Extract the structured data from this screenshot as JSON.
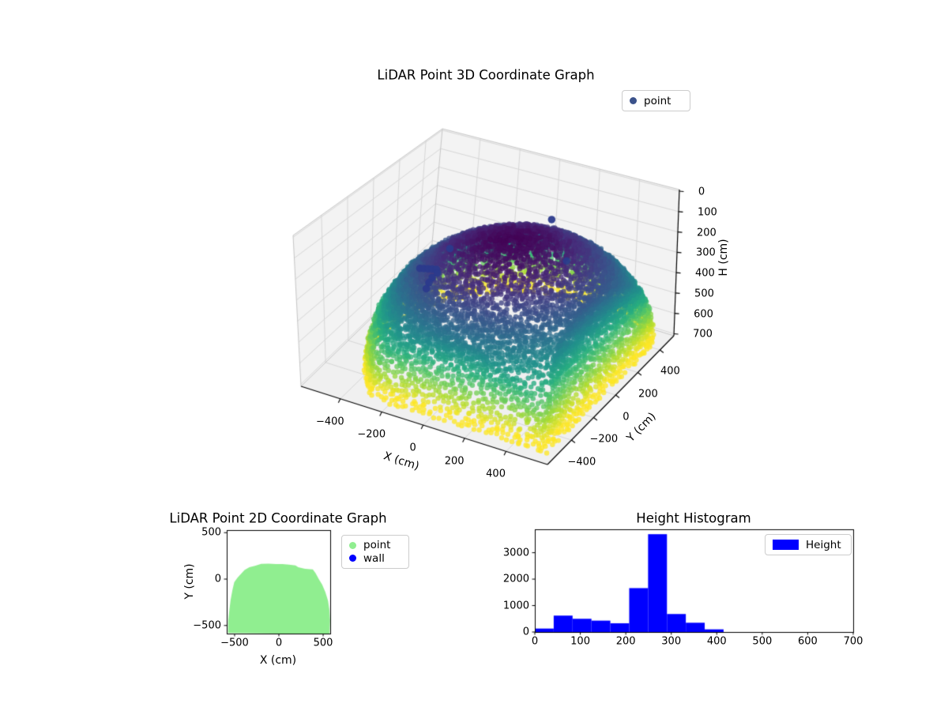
{
  "figure": {
    "background": "#ffffff"
  },
  "chart_data": [
    {
      "type": "scatter3d",
      "title": "LiDAR Point 3D Coordinate Graph",
      "xlabel": "X (cm)",
      "ylabel": "Y (cm)",
      "zlabel": "H (cm)",
      "xticks": [
        -400,
        -200,
        0,
        200,
        400
      ],
      "yticks": [
        -400,
        -200,
        0,
        200,
        400
      ],
      "zticks": [
        0,
        100,
        200,
        300,
        400,
        500,
        600,
        700
      ],
      "xlim": [
        -590,
        600
      ],
      "ylim": [
        -617,
        526
      ],
      "zlim": [
        -8,
        710
      ],
      "zaxis_inverted": true,
      "grid": true,
      "legend": [
        {
          "label": "point",
          "color": "#3b528b"
        }
      ],
      "legend_position": "upper right",
      "colormap": "viridis",
      "colormap_stops": [
        "#440154",
        "#472d7b",
        "#3b528b",
        "#2c728e",
        "#21918c",
        "#28ae80",
        "#5ec962",
        "#addc30",
        "#fde725"
      ],
      "series": [
        {
          "name": "point",
          "kind": "dome-point-cloud",
          "dome": {
            "center_x": 180,
            "center_y": -120,
            "radius": 640,
            "base_h": 700,
            "vertical_extent": 640,
            "rings": 48,
            "clamp_x": [
              -578,
              588
            ],
            "clamp_y": [
              -600,
              520
            ],
            "color_by": "H",
            "color_norm": [
              50,
              630
            ],
            "marker_px": 6.4,
            "alpha": 0.78
          }
        },
        {
          "name": "wall",
          "color": "#2b3a8c",
          "marker_px": 9.5,
          "points": [
            [
              -270,
              -140,
              290
            ],
            [
              -252,
              -136,
              288
            ],
            [
              -234,
              -132,
              286
            ],
            [
              -216,
              -128,
              284
            ],
            [
              -198,
              -124,
              283
            ],
            [
              -188,
              -132,
              294
            ],
            [
              -204,
              -150,
              312
            ],
            [
              -210,
              -166,
              330
            ],
            [
              -214,
              -182,
              352
            ],
            [
              -160,
              -75,
              195
            ],
            [
              180,
              190,
              90
            ],
            [
              280,
              150,
              245
            ]
          ]
        }
      ]
    },
    {
      "type": "scatter",
      "title": "LiDAR Point 2D Coordinate Graph",
      "xlabel": "X (cm)",
      "ylabel": "Y (cm)",
      "xticks": [
        -500,
        0,
        500
      ],
      "yticks": [
        -500,
        0,
        500
      ],
      "xlim": [
        -589,
        580
      ],
      "ylim": [
        -587,
        528
      ],
      "legend": [
        {
          "label": "point",
          "color": "#90ee90"
        },
        {
          "label": "wall",
          "color": "#0000ff"
        }
      ],
      "region_color": "#90ee90",
      "region_outline": [
        [
          -577,
          -587
        ],
        [
          -572,
          -460
        ],
        [
          -562,
          -330
        ],
        [
          -545,
          -230
        ],
        [
          -522,
          -120
        ],
        [
          -500,
          -40
        ],
        [
          -470,
          15
        ],
        [
          -432,
          60
        ],
        [
          -385,
          100
        ],
        [
          -330,
          130
        ],
        [
          -270,
          148
        ],
        [
          -200,
          158
        ],
        [
          -120,
          164
        ],
        [
          -40,
          166
        ],
        [
          40,
          164
        ],
        [
          120,
          155
        ],
        [
          185,
          140
        ],
        [
          225,
          127
        ],
        [
          290,
          112
        ],
        [
          345,
          110
        ],
        [
          382,
          106
        ],
        [
          420,
          62
        ],
        [
          453,
          0
        ],
        [
          490,
          -60
        ],
        [
          525,
          -140
        ],
        [
          552,
          -230
        ],
        [
          568,
          -330
        ],
        [
          575,
          -440
        ],
        [
          573,
          -587
        ]
      ]
    },
    {
      "type": "histogram",
      "title": "Height Histogram",
      "bin_start": 0,
      "bin_width": 41.5,
      "counts": [
        130,
        620,
        500,
        430,
        330,
        1660,
        3700,
        680,
        350,
        100
      ],
      "xticks": [
        0,
        100,
        200,
        300,
        400,
        500,
        600,
        700
      ],
      "yticks": [
        0,
        1000,
        2000,
        3000
      ],
      "xlim": [
        0,
        700
      ],
      "ylim": [
        0,
        3885
      ],
      "bar_color": "#0000ff",
      "legend": [
        {
          "label": "Height",
          "color": "#0000ff"
        }
      ],
      "legend_position": "upper right"
    }
  ]
}
